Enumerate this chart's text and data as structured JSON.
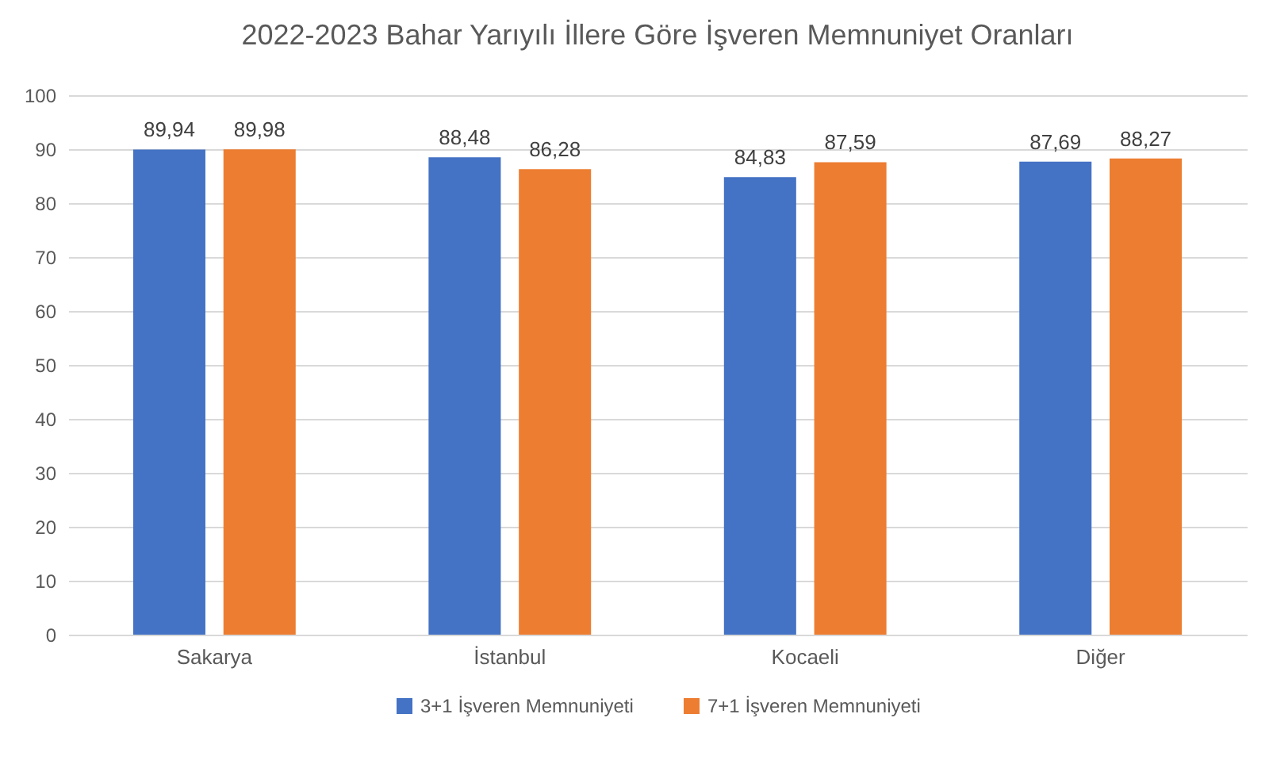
{
  "chart_data": {
    "type": "bar",
    "title": "2022-2023 Bahar Yarıyılı İllere Göre İşveren Memnuniyet Oranları",
    "categories": [
      "Sakarya",
      "İstanbul",
      "Kocaeli",
      "Diğer"
    ],
    "series": [
      {
        "name": "3+1 İşveren Memnuniyeti",
        "color": "#4472c4",
        "values": [
          89.94,
          88.48,
          84.83,
          87.69
        ],
        "value_labels": [
          "89,94",
          "88,48",
          "84,83",
          "87,69"
        ]
      },
      {
        "name": "7+1 İşveren Memnuniyeti",
        "color": "#ed7d31",
        "values": [
          89.98,
          86.28,
          87.59,
          88.27
        ],
        "value_labels": [
          "89,98",
          "86,28",
          "87,59",
          "88,27"
        ]
      }
    ],
    "ylim": [
      0,
      100
    ],
    "yticks": [
      0,
      10,
      20,
      30,
      40,
      50,
      60,
      70,
      80,
      90,
      100
    ],
    "grid": "y",
    "legend": "bottom"
  }
}
